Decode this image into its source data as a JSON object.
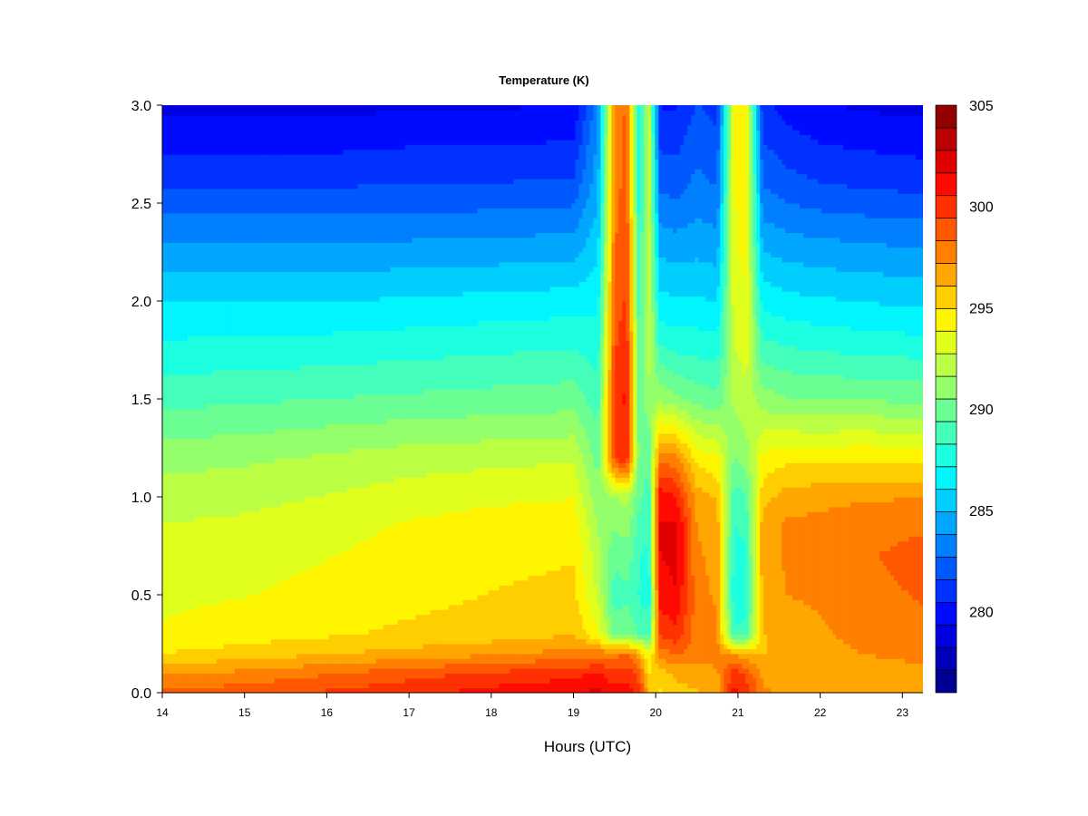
{
  "chart_data": {
    "type": "heatmap",
    "title": "Temperature (K)",
    "xlabel": "Hours (UTC)",
    "ylabel": "",
    "xlim": [
      14,
      23.25
    ],
    "ylim": [
      0,
      3.0
    ],
    "x_ticks": [
      14,
      15,
      16,
      17,
      18,
      19,
      20,
      21,
      22,
      23
    ],
    "x_tick_labels": [
      "14",
      "15",
      "16",
      "17",
      "18",
      "19",
      "20",
      "21",
      "22",
      "23"
    ],
    "y_ticks": [
      0,
      0.5,
      1.0,
      1.5,
      2.0,
      2.5,
      3.0
    ],
    "y_tick_labels": [
      "0.0",
      "0.5",
      "1.0",
      "1.5",
      "2.0",
      "2.5",
      "3.0"
    ],
    "colorbar": {
      "range": [
        276,
        305
      ],
      "levels": 26,
      "ticks": [
        280,
        285,
        290,
        295,
        300,
        305
      ],
      "tick_labels": [
        "280",
        "285",
        "290",
        "295",
        "300",
        "305"
      ]
    },
    "colormap": [
      "#00007f",
      "#0000ff",
      "#007fff",
      "#00ffff",
      "#7fff7f",
      "#ffff00",
      "#ff7f00",
      "#ff0000",
      "#7f0000"
    ],
    "heights": [
      0.0,
      0.1,
      0.2,
      0.3,
      0.5,
      0.7,
      0.85,
      1.0,
      1.2,
      1.5,
      1.8,
      2.0,
      2.3,
      2.6,
      3.0
    ],
    "profiles": [
      {
        "hour": 14.0,
        "temps": [
          298.5,
          297.0,
          295.0,
          294.0,
          293.6,
          293.2,
          292.8,
          292.2,
          291.2,
          289.0,
          287.2,
          286.0,
          283.8,
          281.4,
          279.0
        ]
      },
      {
        "hour": 15.0,
        "temps": [
          299.0,
          297.5,
          295.5,
          294.4,
          293.8,
          293.4,
          293.0,
          292.4,
          291.4,
          289.2,
          287.3,
          286.0,
          283.8,
          281.4,
          279.0
        ]
      },
      {
        "hour": 16.0,
        "temps": [
          299.6,
          298.2,
          296.0,
          294.8,
          294.2,
          293.8,
          293.4,
          292.8,
          291.8,
          289.4,
          287.4,
          286.0,
          283.8,
          281.4,
          279.0
        ]
      },
      {
        "hour": 17.0,
        "temps": [
          300.2,
          299.0,
          296.5,
          295.2,
          294.6,
          294.3,
          294.0,
          293.3,
          292.2,
          289.6,
          287.6,
          286.2,
          283.9,
          281.6,
          279.2
        ]
      },
      {
        "hour": 18.0,
        "temps": [
          301.0,
          299.6,
          297.0,
          295.5,
          295.0,
          294.7,
          294.4,
          293.6,
          292.4,
          289.8,
          287.8,
          286.4,
          284.0,
          281.6,
          279.2
        ]
      },
      {
        "hour": 19.0,
        "temps": [
          301.5,
          300.2,
          297.6,
          296.0,
          295.2,
          294.9,
          294.6,
          293.8,
          292.6,
          290.0,
          288.0,
          286.6,
          284.2,
          281.8,
          279.4
        ]
      },
      {
        "hour": 19.3,
        "temps": [
          302.0,
          300.6,
          297.8,
          294.0,
          292.5,
          292.0,
          291.5,
          290.8,
          290.0,
          288.8,
          287.6,
          286.8,
          285.6,
          284.6,
          283.6
        ]
      },
      {
        "hour": 19.5,
        "temps": [
          301.0,
          299.8,
          298.0,
          290.0,
          288.8,
          289.6,
          290.5,
          291.5,
          299.5,
          299.8,
          299.2,
          298.8,
          298.2,
          297.8,
          297.5
        ]
      },
      {
        "hour": 19.65,
        "temps": [
          301.2,
          300.2,
          298.2,
          290.4,
          289.2,
          290.0,
          291.0,
          292.0,
          300.5,
          300.8,
          300.2,
          299.6,
          299.2,
          298.8,
          298.5
        ]
      },
      {
        "hour": 19.8,
        "temps": [
          300.0,
          298.8,
          296.6,
          289.4,
          288.2,
          288.4,
          289.0,
          289.6,
          290.0,
          289.8,
          289.2,
          288.6,
          288.0,
          287.4,
          286.8
        ]
      },
      {
        "hour": 19.92,
        "temps": [
          296.2,
          295.0,
          293.8,
          288.8,
          287.6,
          288.0,
          288.4,
          288.8,
          289.6,
          291.2,
          292.4,
          292.8,
          292.8,
          292.6,
          292.4
        ]
      },
      {
        "hour": 20.05,
        "temps": [
          294.8,
          295.6,
          297.6,
          299.6,
          301.0,
          301.6,
          301.8,
          301.2,
          298.0,
          291.4,
          288.0,
          286.4,
          284.4,
          282.4,
          280.4
        ]
      },
      {
        "hour": 20.25,
        "temps": [
          295.6,
          296.4,
          298.4,
          300.2,
          301.6,
          302.0,
          302.0,
          300.6,
          297.6,
          290.8,
          287.6,
          286.2,
          284.2,
          282.2,
          280.4
        ]
      },
      {
        "hour": 20.5,
        "temps": [
          296.0,
          296.6,
          297.8,
          297.8,
          297.6,
          297.4,
          297.2,
          296.6,
          294.6,
          290.0,
          287.6,
          286.2,
          284.4,
          283.0,
          281.6
        ]
      },
      {
        "hour": 20.75,
        "temps": [
          296.6,
          297.0,
          297.6,
          297.4,
          297.0,
          296.8,
          296.6,
          296.0,
          294.0,
          289.8,
          287.4,
          286.0,
          284.2,
          282.6,
          281.2
        ]
      },
      {
        "hour": 20.95,
        "temps": [
          301.0,
          300.0,
          297.0,
          288.4,
          287.6,
          287.8,
          288.2,
          288.8,
          290.4,
          291.8,
          292.8,
          293.2,
          293.6,
          293.8,
          293.8
        ]
      },
      {
        "hour": 21.1,
        "temps": [
          300.2,
          299.2,
          296.4,
          288.6,
          287.8,
          288.0,
          288.6,
          289.2,
          291.0,
          292.4,
          293.4,
          293.8,
          294.2,
          294.4,
          294.4
        ]
      },
      {
        "hour": 21.3,
        "temps": [
          297.4,
          297.0,
          296.0,
          296.0,
          296.4,
          296.6,
          296.6,
          295.6,
          294.2,
          291.0,
          288.4,
          286.8,
          284.6,
          282.6,
          280.8
        ]
      },
      {
        "hour": 21.6,
        "temps": [
          296.8,
          296.6,
          296.6,
          296.6,
          297.2,
          297.4,
          297.4,
          296.6,
          294.6,
          290.6,
          288.0,
          286.4,
          284.2,
          282.0,
          280.0
        ]
      },
      {
        "hour": 22.0,
        "temps": [
          296.4,
          296.2,
          296.6,
          297.0,
          297.4,
          297.6,
          297.6,
          296.8,
          294.6,
          290.4,
          287.8,
          286.2,
          284.0,
          281.6,
          279.4
        ]
      },
      {
        "hour": 22.5,
        "temps": [
          296.8,
          296.8,
          297.2,
          297.6,
          298.0,
          298.2,
          298.0,
          297.0,
          294.8,
          290.4,
          287.6,
          286.0,
          283.8,
          281.4,
          279.2
        ]
      },
      {
        "hour": 23.25,
        "temps": [
          297.0,
          297.0,
          297.4,
          298.0,
          298.4,
          298.6,
          298.2,
          297.2,
          294.6,
          290.2,
          287.4,
          285.8,
          283.6,
          281.2,
          279.0
        ]
      }
    ]
  }
}
